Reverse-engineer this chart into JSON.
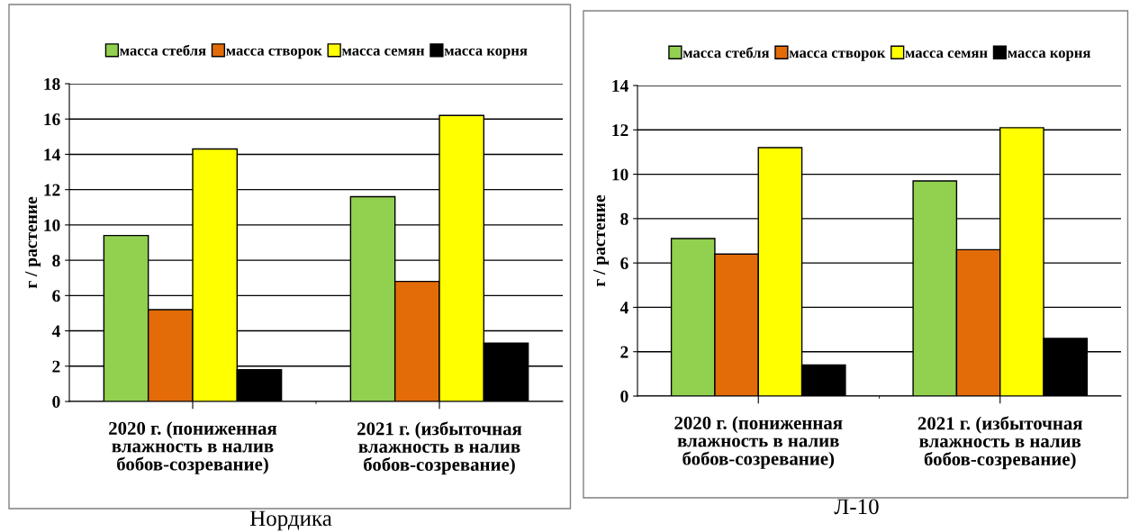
{
  "chart_data": [
    {
      "type": "bar",
      "title": "Нордика",
      "ylabel": "г / растение",
      "categories": [
        "2020 г. (пониженная влажность в налив бобов-созревание)",
        "2021 г. (избыточная влажность в налив бобов-созревание)"
      ],
      "series": [
        {
          "name": "масса стебля",
          "color": "#92d050",
          "values": [
            9.4,
            11.6
          ]
        },
        {
          "name": "масса створок",
          "color": "#e36c09",
          "values": [
            5.2,
            6.8
          ]
        },
        {
          "name": "масса семян",
          "color": "#ffff00",
          "values": [
            14.3,
            16.2
          ]
        },
        {
          "name": "масса корня",
          "color": "#000000",
          "values": [
            1.8,
            3.3
          ]
        }
      ],
      "ylim": [
        0,
        18
      ],
      "yticks": [
        0,
        2,
        4,
        6,
        8,
        10,
        12,
        14,
        16,
        18
      ],
      "grid": "y",
      "legend": "top"
    },
    {
      "type": "bar",
      "title": "Л-10",
      "ylabel": "г / растение",
      "categories": [
        "2020 г. (пониженная влажность в налив бобов-созревание)",
        "2021 г. (избыточная влажность в налив бобов-созревание)"
      ],
      "series": [
        {
          "name": "масса стебля",
          "color": "#92d050",
          "values": [
            7.1,
            9.7
          ]
        },
        {
          "name": "масса створок",
          "color": "#e36c09",
          "values": [
            6.4,
            6.6
          ]
        },
        {
          "name": "масса семян",
          "color": "#ffff00",
          "values": [
            11.2,
            12.1
          ]
        },
        {
          "name": "масса корня",
          "color": "#000000",
          "values": [
            1.4,
            2.6
          ]
        }
      ],
      "ylim": [
        0,
        14
      ],
      "yticks": [
        0,
        2,
        4,
        6,
        8,
        10,
        12,
        14
      ],
      "grid": "y",
      "legend": "top"
    }
  ]
}
